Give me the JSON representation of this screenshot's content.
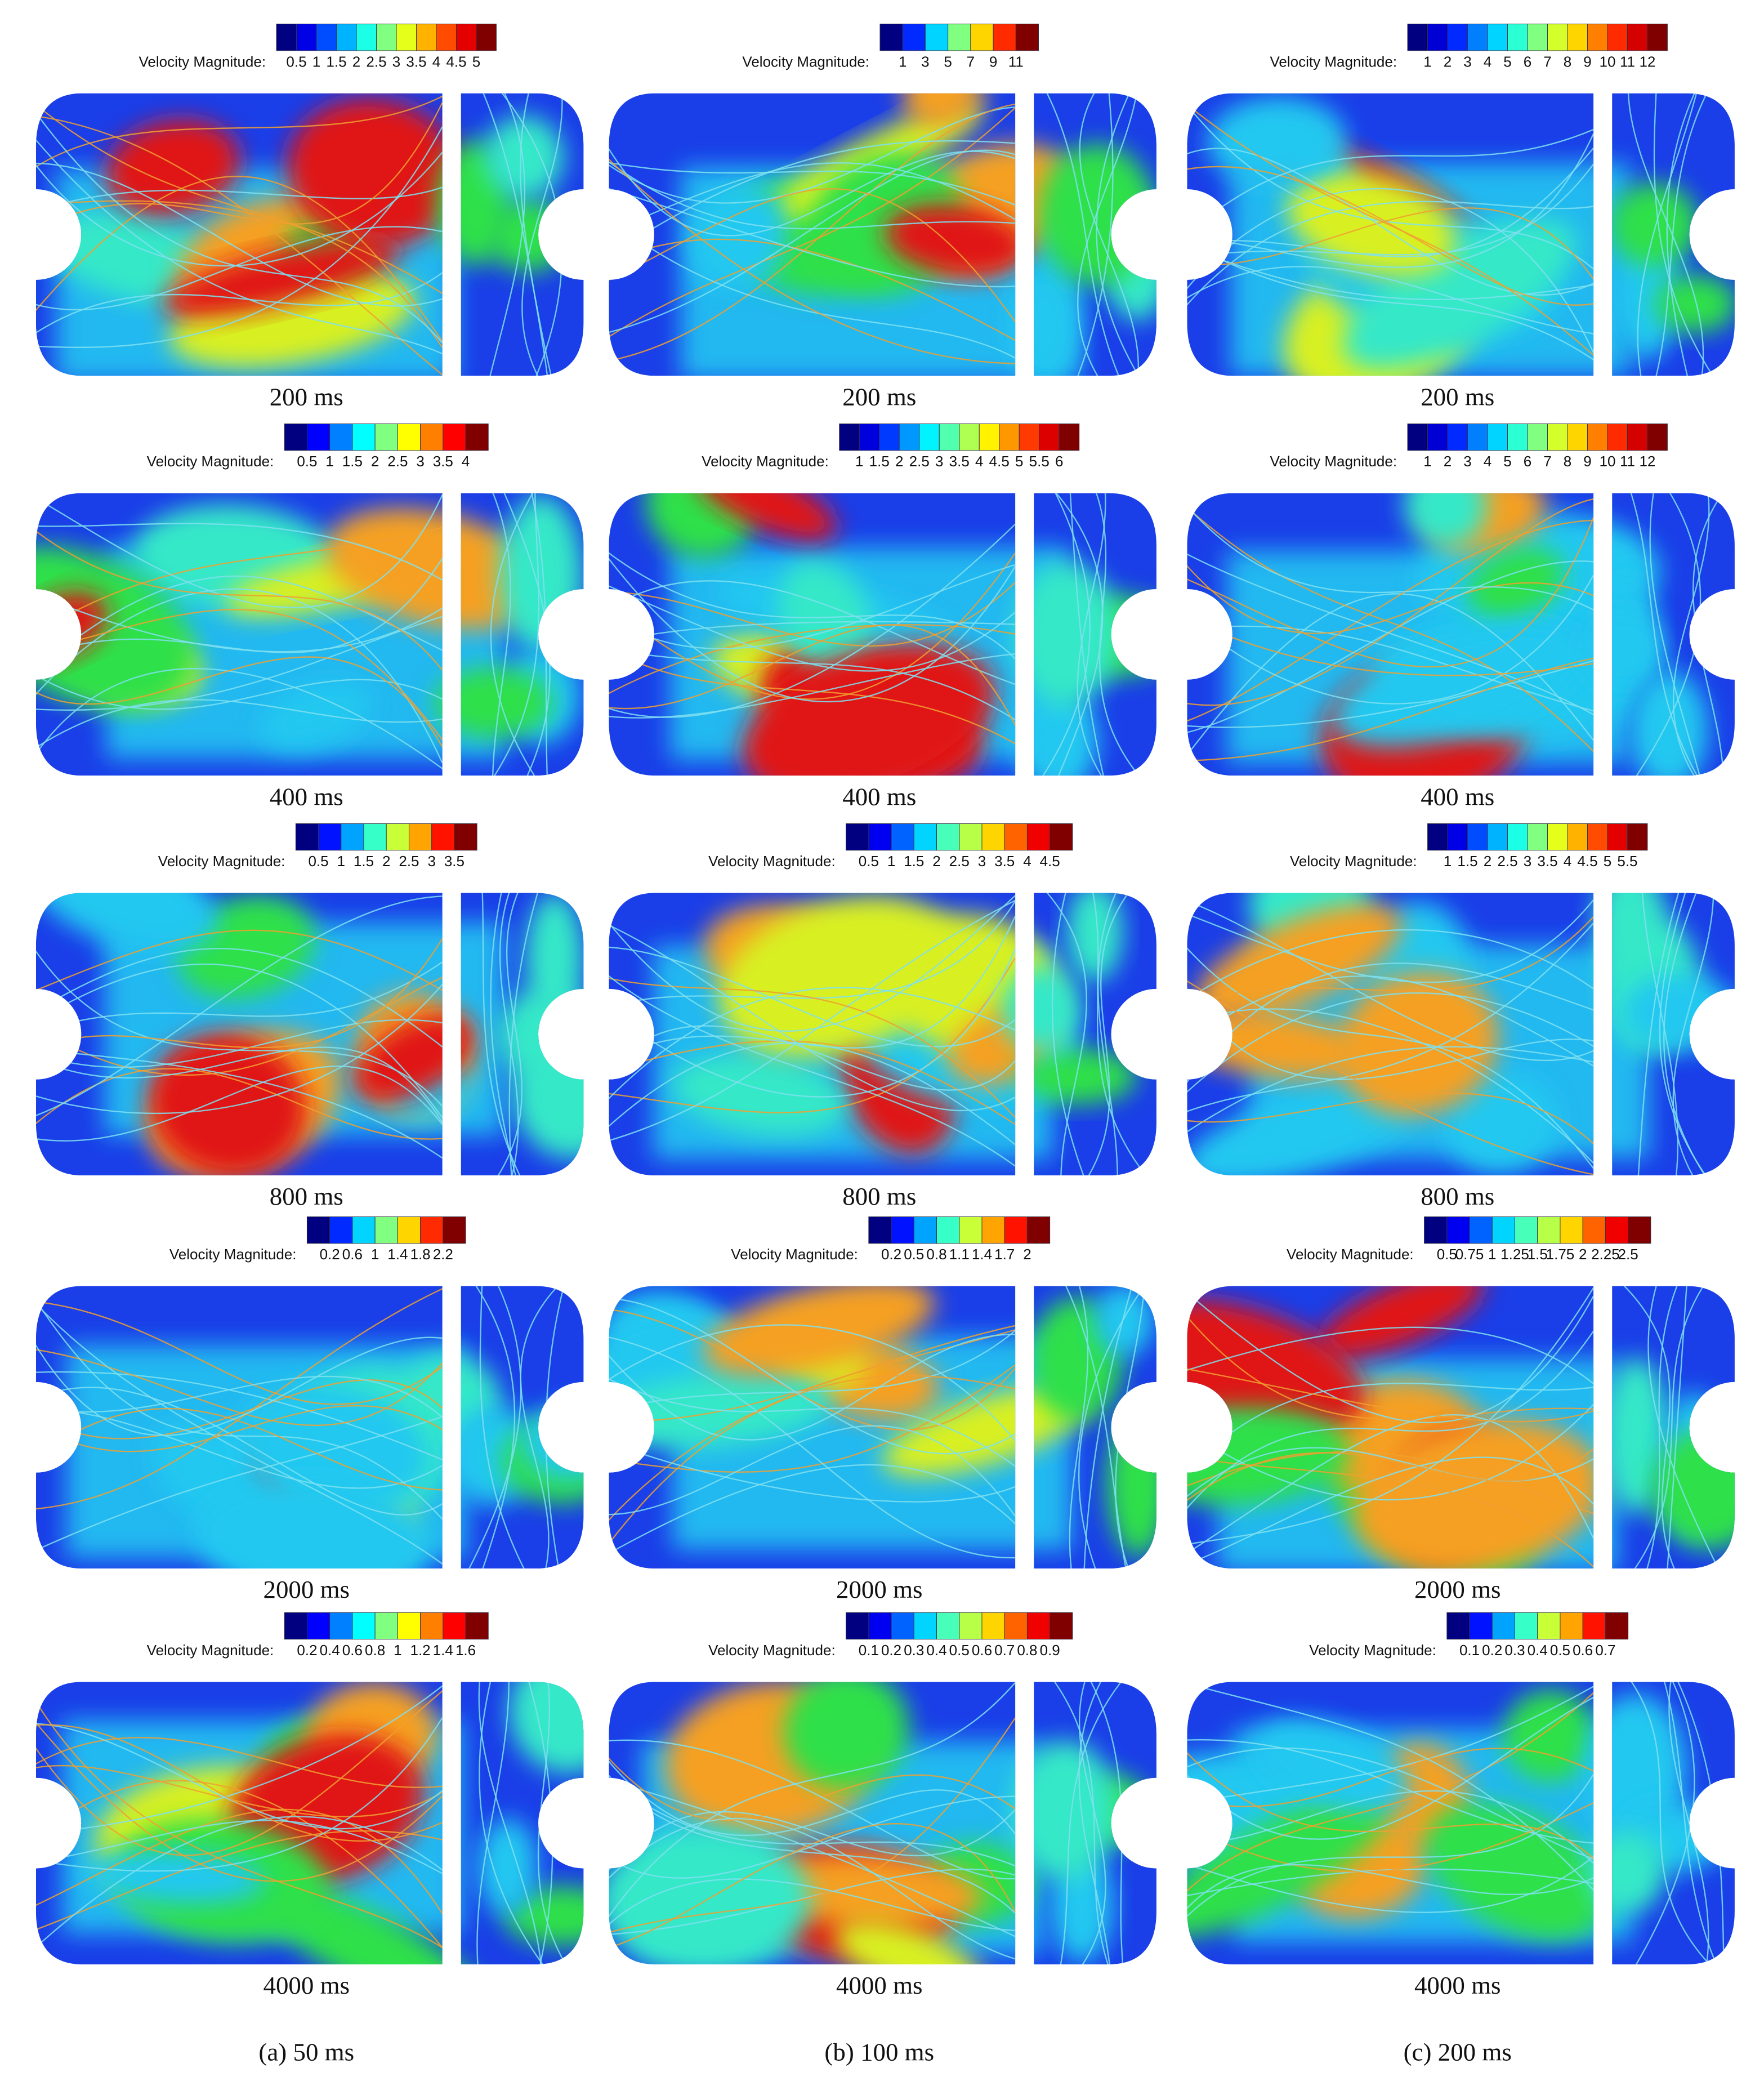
{
  "columns": [
    {
      "caption": "(a) 50 ms",
      "panels": [
        {
          "legend_label": "Velocity Magnitude:",
          "ticks": [
            "0.5",
            "1",
            "1.5",
            "2",
            "2.5",
            "3",
            "3.5",
            "4",
            "4.5",
            "5"
          ],
          "time": "200 ms"
        },
        {
          "legend_label": "Velocity Magnitude:",
          "ticks": [
            "0.5",
            "1",
            "1.5",
            "2",
            "2.5",
            "3",
            "3.5",
            "4"
          ],
          "time": "400 ms"
        },
        {
          "legend_label": "Velocity Magnitude:",
          "ticks": [
            "0.5",
            "1",
            "1.5",
            "2",
            "2.5",
            "3",
            "3.5"
          ],
          "time": "800 ms"
        },
        {
          "legend_label": "Velocity Magnitude:",
          "ticks": [
            "0.2",
            "0.6",
            "1",
            "1.4",
            "1.8",
            "2.2"
          ],
          "time": "2000 ms"
        },
        {
          "legend_label": "Velocity Magnitude:",
          "ticks": [
            "0.2",
            "0.4",
            "0.6",
            "0.8",
            "1",
            "1.2",
            "1.4",
            "1.6"
          ],
          "time": "4000 ms"
        }
      ]
    },
    {
      "caption": "(b) 100 ms",
      "panels": [
        {
          "legend_label": "Velocity Magnitude:",
          "ticks": [
            "1",
            "3",
            "5",
            "7",
            "9",
            "11"
          ],
          "time": "200 ms"
        },
        {
          "legend_label": "Velocity Magnitude:",
          "ticks": [
            "1",
            "1.5",
            "2",
            "2.5",
            "3",
            "3.5",
            "4",
            "4.5",
            "5",
            "5.5",
            "6"
          ],
          "time": "400 ms"
        },
        {
          "legend_label": "Velocity Magnitude:",
          "ticks": [
            "0.5",
            "1",
            "1.5",
            "2",
            "2.5",
            "3",
            "3.5",
            "4",
            "4.5"
          ],
          "time": "800 ms"
        },
        {
          "legend_label": "Velocity Magnitude:",
          "ticks": [
            "0.2",
            "0.5",
            "0.8",
            "1.1",
            "1.4",
            "1.7",
            "2"
          ],
          "time": "2000 ms"
        },
        {
          "legend_label": "Velocity Magnitude:",
          "ticks": [
            "0.1",
            "0.2",
            "0.3",
            "0.4",
            "0.5",
            "0.6",
            "0.7",
            "0.8",
            "0.9"
          ],
          "time": "4000 ms"
        }
      ]
    },
    {
      "caption": "(c) 200 ms",
      "panels": [
        {
          "legend_label": "Velocity Magnitude:",
          "ticks": [
            "1",
            "2",
            "3",
            "4",
            "5",
            "6",
            "7",
            "8",
            "9",
            "10",
            "11",
            "12"
          ],
          "time": "200 ms"
        },
        {
          "legend_label": "Velocity Magnitude:",
          "ticks": [
            "1",
            "2",
            "3",
            "4",
            "5",
            "6",
            "7",
            "8",
            "9",
            "10",
            "11",
            "12"
          ],
          "time": "400 ms"
        },
        {
          "legend_label": "Velocity Magnitude:",
          "ticks": [
            "1",
            "1.5",
            "2",
            "2.5",
            "3",
            "3.5",
            "4",
            "4.5",
            "5",
            "5.5"
          ],
          "time": "800 ms"
        },
        {
          "legend_label": "Velocity Magnitude:",
          "ticks": [
            "0.5",
            "0.75",
            "1",
            "1.25",
            "1.5",
            "1.75",
            "2",
            "2.25",
            "2.5"
          ],
          "time": "2000 ms"
        },
        {
          "legend_label": "Velocity Magnitude:",
          "ticks": [
            "0.1",
            "0.2",
            "0.3",
            "0.4",
            "0.5",
            "0.6",
            "0.7"
          ],
          "time": "4000 ms"
        }
      ]
    }
  ]
}
